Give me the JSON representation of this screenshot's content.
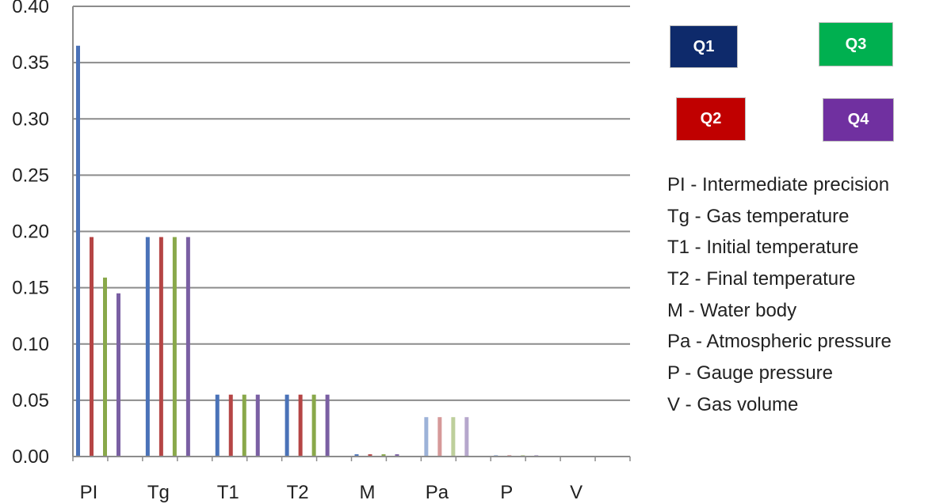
{
  "chart_data": {
    "type": "bar",
    "categories": [
      "PI",
      "Tg",
      "T1",
      "T2",
      "M",
      "Pa",
      "P",
      "V"
    ],
    "series": [
      {
        "name": "Q1",
        "color": "#4a72b8",
        "values": [
          0.365,
          0.195,
          0.055,
          0.055,
          0.002,
          0.035,
          0.001,
          0.0
        ]
      },
      {
        "name": "Q2",
        "color": "#b54545",
        "values": [
          0.195,
          0.195,
          0.055,
          0.055,
          0.002,
          0.035,
          0.001,
          0.0
        ]
      },
      {
        "name": "Q3",
        "color": "#89a84a",
        "values": [
          0.159,
          0.195,
          0.055,
          0.055,
          0.002,
          0.035,
          0.001,
          0.0
        ]
      },
      {
        "name": "Q4",
        "color": "#7a5fa3",
        "values": [
          0.145,
          0.195,
          0.055,
          0.055,
          0.002,
          0.035,
          0.001,
          0.0
        ]
      }
    ],
    "faded_categories": [
      "Pa"
    ],
    "ylim": [
      0,
      0.4
    ],
    "yticks": [
      "0.00",
      "0.05",
      "0.10",
      "0.15",
      "0.20",
      "0.25",
      "0.30",
      "0.35",
      "0.40"
    ],
    "grid": true,
    "legend_placement": "right",
    "legend": [
      {
        "label": "Q1",
        "color": "#0e2a6b"
      },
      {
        "label": "Q2",
        "color": "#c00000"
      },
      {
        "label": "Q3",
        "color": "#00b050"
      },
      {
        "label": "Q4",
        "color": "#7030a0"
      }
    ],
    "annotations": [
      "PI - Intermediate precision",
      "Tg - Gas temperature",
      "T1 - Initial temperature",
      "T2 - Final temperature",
      "M - Water body",
      "Pa - Atmospheric pressure",
      "P - Gauge pressure",
      "V - Gas volume"
    ]
  }
}
